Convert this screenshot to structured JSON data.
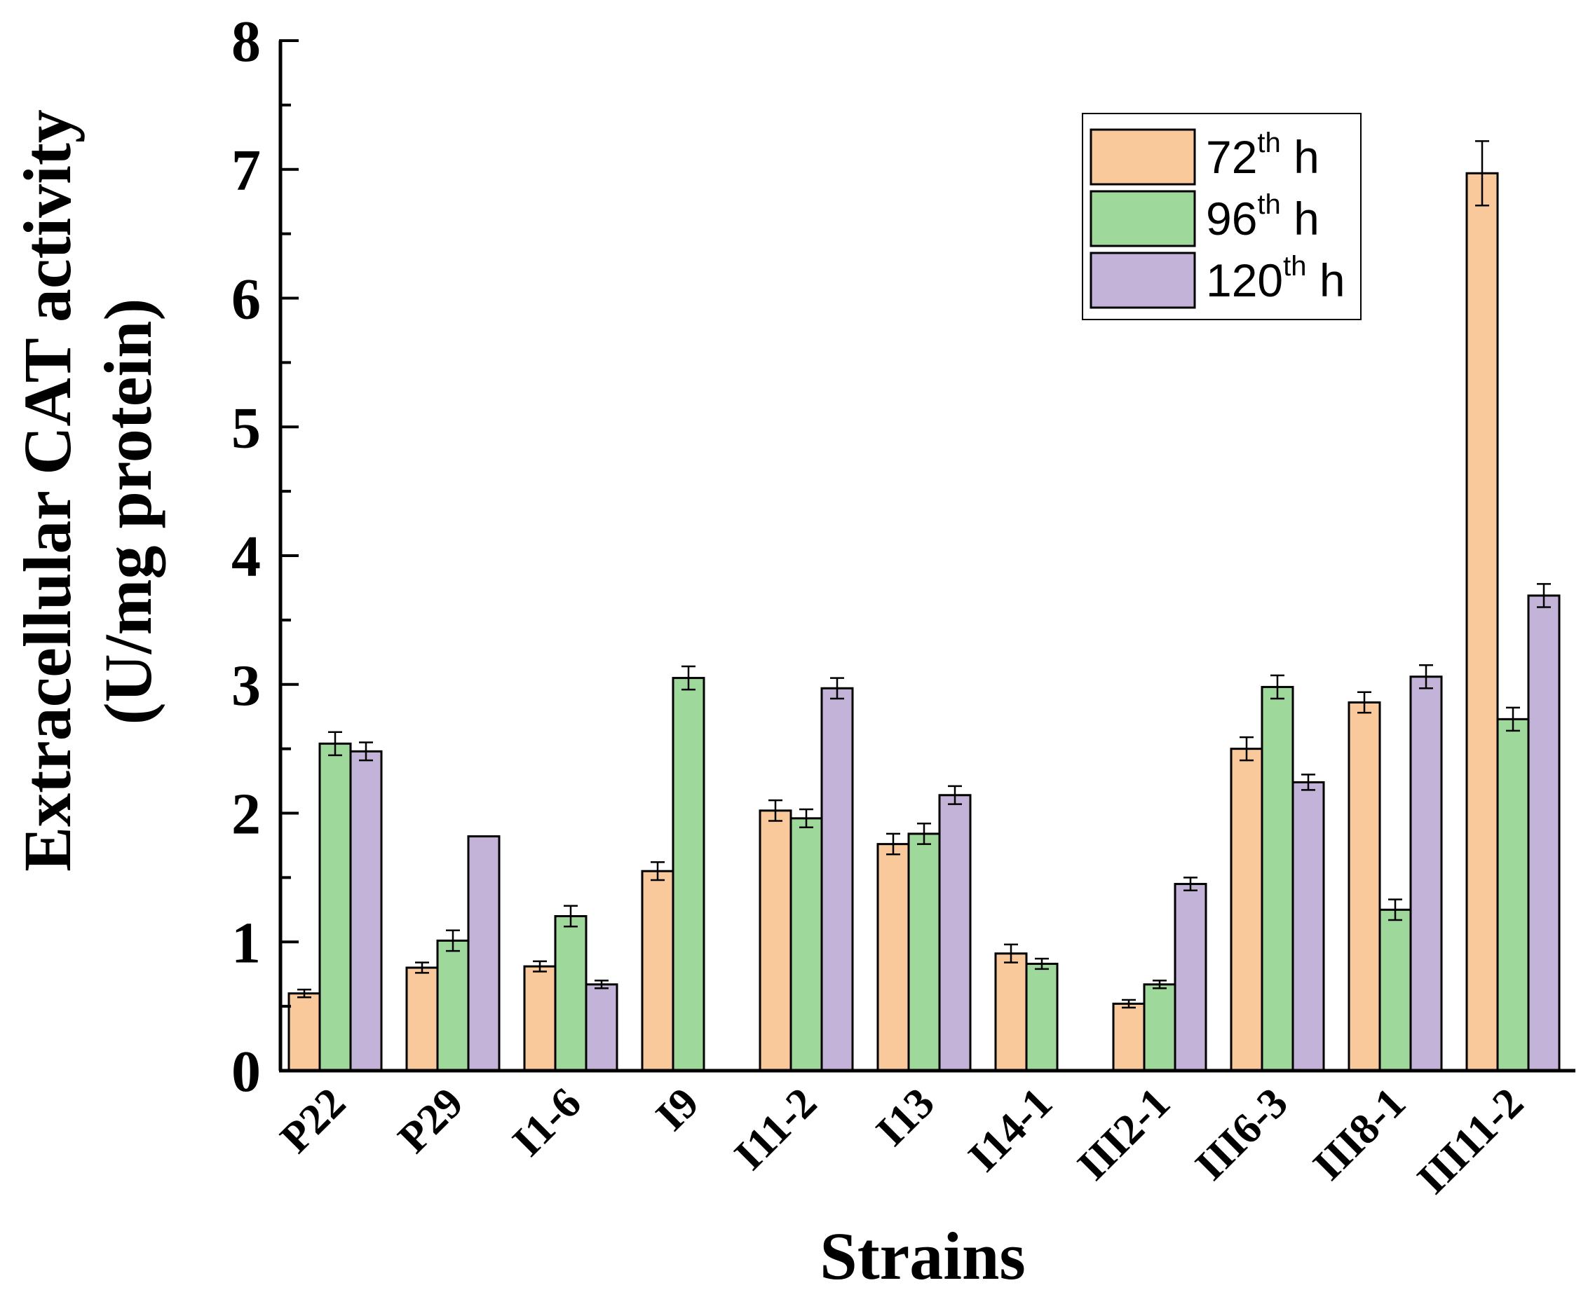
{
  "chart_data": {
    "type": "bar",
    "title": "",
    "xlabel": "Strains",
    "ylabel_line1": "Extracellular CAT activity",
    "ylabel_line2": "(U/mg protein)",
    "ylim": [
      0,
      8
    ],
    "yticks": [
      "0",
      "1",
      "2",
      "3",
      "4",
      "5",
      "6",
      "7",
      "8"
    ],
    "legend_position": "top-right",
    "categories": [
      "P22",
      "P29",
      "I1-6",
      "I9",
      "I11-2",
      "I13",
      "I14-1",
      "III2-1",
      "III6-3",
      "III8-1",
      "III11-2"
    ],
    "series": [
      {
        "name": "72",
        "sup": "th",
        "unit": "h",
        "color": "#F9C89B",
        "values": [
          0.6,
          0.8,
          0.81,
          1.55,
          2.02,
          1.76,
          0.91,
          0.52,
          2.5,
          2.86,
          6.97
        ],
        "errors": [
          0.03,
          0.04,
          0.04,
          0.07,
          0.08,
          0.08,
          0.07,
          0.03,
          0.09,
          0.08,
          0.25
        ]
      },
      {
        "name": "96",
        "sup": "th",
        "unit": "h",
        "color": "#9ED99B",
        "values": [
          2.54,
          1.01,
          1.2,
          3.05,
          1.96,
          1.84,
          0.83,
          0.67,
          2.98,
          1.25,
          2.73
        ],
        "errors": [
          0.09,
          0.08,
          0.08,
          0.09,
          0.07,
          0.08,
          0.04,
          0.03,
          0.09,
          0.08,
          0.09
        ]
      },
      {
        "name": "120",
        "sup": "th",
        "unit": "h",
        "color": "#C4B3D8",
        "values": [
          2.48,
          1.82,
          0.67,
          null,
          2.97,
          2.14,
          null,
          1.45,
          2.24,
          3.06,
          3.69
        ],
        "errors": [
          0.07,
          0.0,
          0.03,
          null,
          0.08,
          0.07,
          null,
          0.05,
          0.06,
          0.09,
          0.09
        ]
      }
    ]
  }
}
